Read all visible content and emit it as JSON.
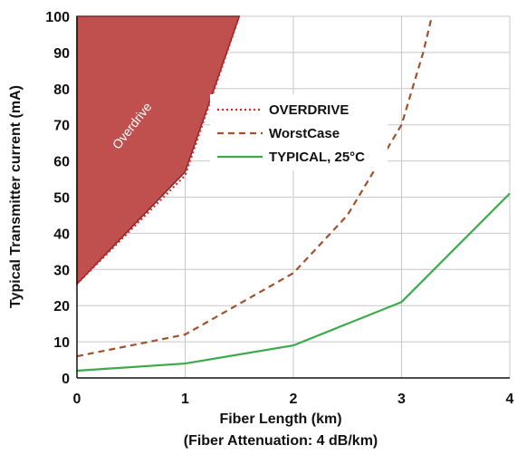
{
  "chart_data": {
    "type": "line",
    "xlabel": "Fiber Length (km)",
    "xlabel2": "(Fiber Attenuation: 4 dB/km)",
    "ylabel": "Typical Transmitter current (mA)",
    "xlim": [
      0,
      4
    ],
    "ylim": [
      0,
      100
    ],
    "xticks": [
      0,
      1,
      2,
      3,
      4
    ],
    "yticks": [
      0,
      10,
      20,
      30,
      40,
      50,
      60,
      70,
      80,
      90,
      100
    ],
    "grid": true,
    "legend_position": "middle",
    "region_label": "Overdrive",
    "series": [
      {
        "name": "OVERDRIVE",
        "style": "dotted",
        "color": "#e8202a",
        "x": [
          0,
          1,
          1.5
        ],
        "y": [
          26,
          56,
          100
        ]
      },
      {
        "name": "WorstCase",
        "style": "dashed",
        "color": "#a0522d",
        "x": [
          0,
          1,
          2,
          2.5,
          3,
          3.1,
          3.2,
          3.28
        ],
        "y": [
          6,
          12,
          29,
          45,
          70,
          80,
          90,
          100
        ]
      },
      {
        "name": "TYPICAL, 25°C",
        "style": "solid",
        "color": "#3aaa4a",
        "x": [
          0,
          1,
          2,
          3,
          4
        ],
        "y": [
          2,
          4,
          9,
          21,
          51
        ]
      }
    ],
    "overdrive_region": {
      "fill": "#c0504d",
      "x": [
        0,
        0,
        1.5,
        1,
        0
      ],
      "y": [
        26,
        100,
        100,
        57,
        26
      ]
    }
  }
}
